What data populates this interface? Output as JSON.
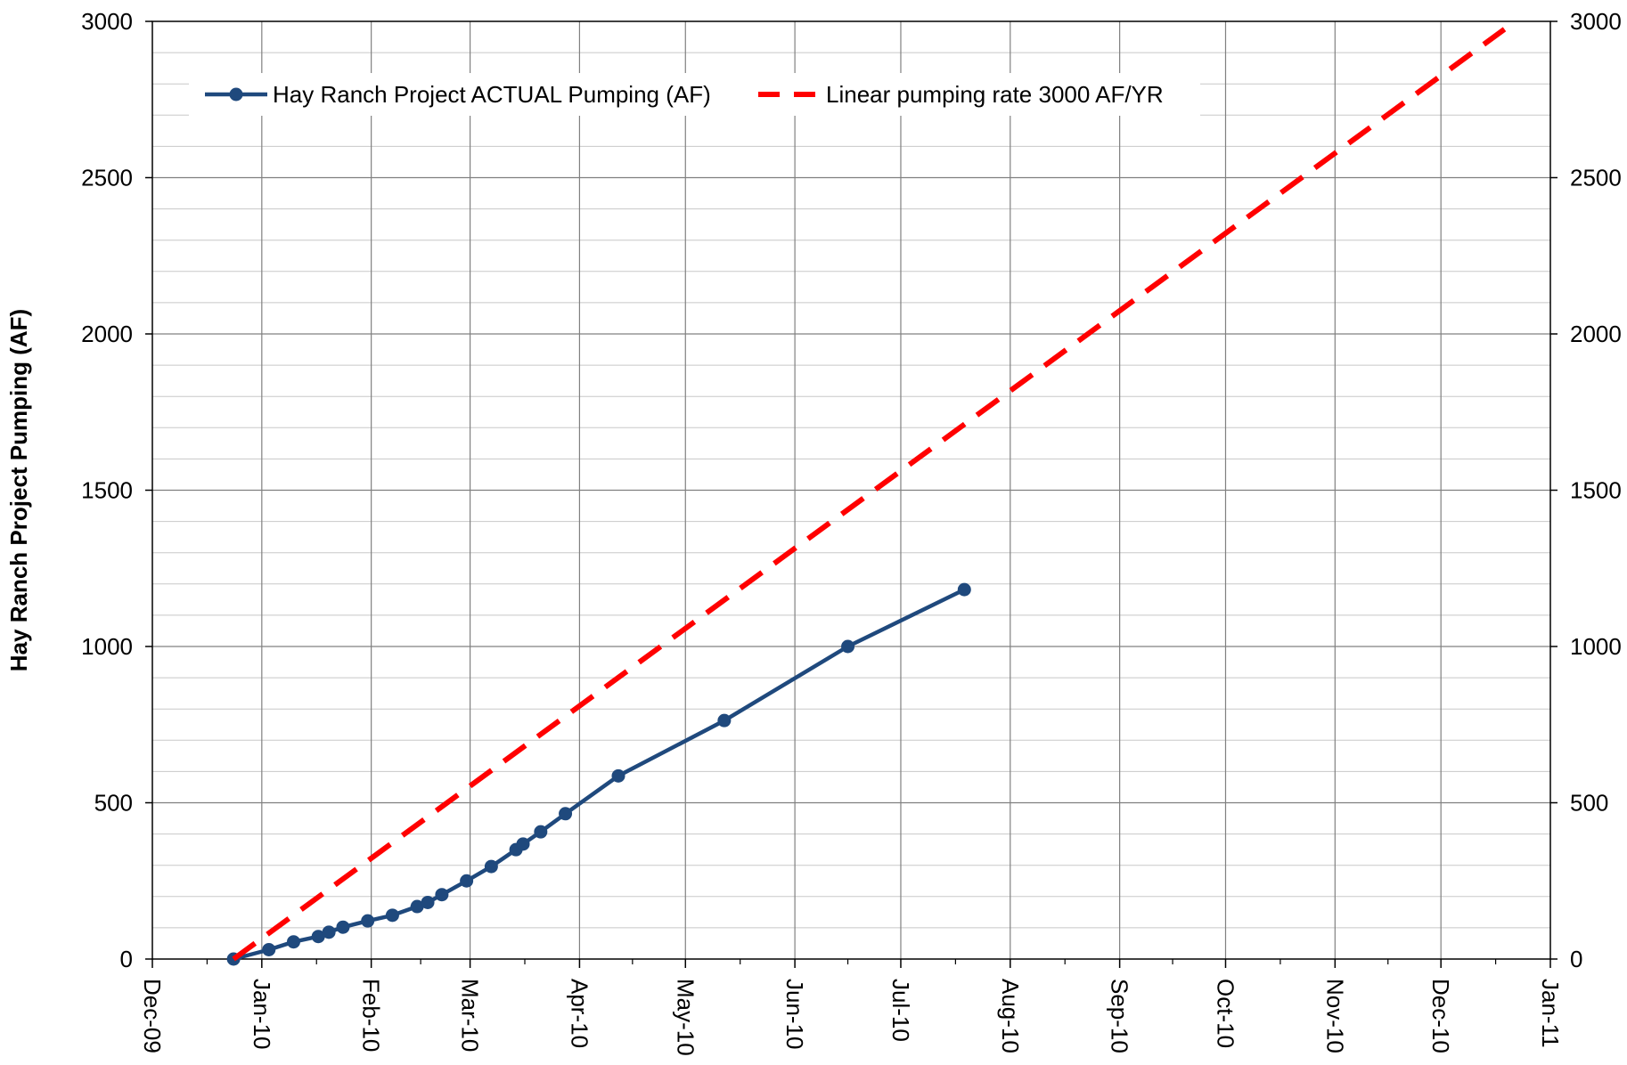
{
  "chart_data": {
    "type": "line",
    "ylabel": "Hay Ranch Project Pumping (AF)",
    "xlabel": "",
    "ylim": [
      0,
      3000
    ],
    "y_ticks": [
      0,
      500,
      1000,
      1500,
      2000,
      2500,
      3000
    ],
    "y_ticks_right": [
      0,
      500,
      1000,
      1500,
      2000,
      2500,
      3000
    ],
    "x_range": [
      "2009-12-01",
      "2011-01-01"
    ],
    "x_ticks": [
      {
        "date": "2009-12-01",
        "label": "Dec-09"
      },
      {
        "date": "2010-01-01",
        "label": "Jan-10"
      },
      {
        "date": "2010-02-01",
        "label": "Feb-10"
      },
      {
        "date": "2010-03-01",
        "label": "Mar-10"
      },
      {
        "date": "2010-04-01",
        "label": "Apr-10"
      },
      {
        "date": "2010-05-01",
        "label": "May-10"
      },
      {
        "date": "2010-06-01",
        "label": "Jun-10"
      },
      {
        "date": "2010-07-01",
        "label": "Jul-10"
      },
      {
        "date": "2010-08-01",
        "label": "Aug-10"
      },
      {
        "date": "2010-09-01",
        "label": "Sep-10"
      },
      {
        "date": "2010-10-01",
        "label": "Oct-10"
      },
      {
        "date": "2010-11-01",
        "label": "Nov-10"
      },
      {
        "date": "2010-12-01",
        "label": "Dec-10"
      },
      {
        "date": "2011-01-01",
        "label": "Jan-11"
      }
    ],
    "grid": true,
    "legend_position": "top-left",
    "series": [
      {
        "name": "Hay Ranch Project ACTUAL Pumping (AF)",
        "color": "#1f497d",
        "style": "solid-markers",
        "points": [
          {
            "x": "2009-12-24",
            "y": 0
          },
          {
            "x": "2010-01-03",
            "y": 30
          },
          {
            "x": "2010-01-10",
            "y": 55
          },
          {
            "x": "2010-01-17",
            "y": 72
          },
          {
            "x": "2010-01-20",
            "y": 86
          },
          {
            "x": "2010-01-24",
            "y": 102
          },
          {
            "x": "2010-01-31",
            "y": 122
          },
          {
            "x": "2010-02-07",
            "y": 140
          },
          {
            "x": "2010-02-14",
            "y": 168
          },
          {
            "x": "2010-02-17",
            "y": 181
          },
          {
            "x": "2010-02-21",
            "y": 206
          },
          {
            "x": "2010-02-28",
            "y": 250
          },
          {
            "x": "2010-03-07",
            "y": 296
          },
          {
            "x": "2010-03-14",
            "y": 350
          },
          {
            "x": "2010-03-16",
            "y": 368
          },
          {
            "x": "2010-03-21",
            "y": 407
          },
          {
            "x": "2010-03-28",
            "y": 465
          },
          {
            "x": "2010-04-12",
            "y": 586
          },
          {
            "x": "2010-05-12",
            "y": 763
          },
          {
            "x": "2010-06-16",
            "y": 1000
          },
          {
            "x": "2010-07-19",
            "y": 1182
          }
        ]
      },
      {
        "name": "Linear pumping rate 3000 AF/YR",
        "color": "#ff0000",
        "style": "dashed",
        "points": [
          {
            "x": "2009-12-24",
            "y": 0
          },
          {
            "x": "2010-12-19",
            "y": 2975
          }
        ]
      }
    ]
  }
}
